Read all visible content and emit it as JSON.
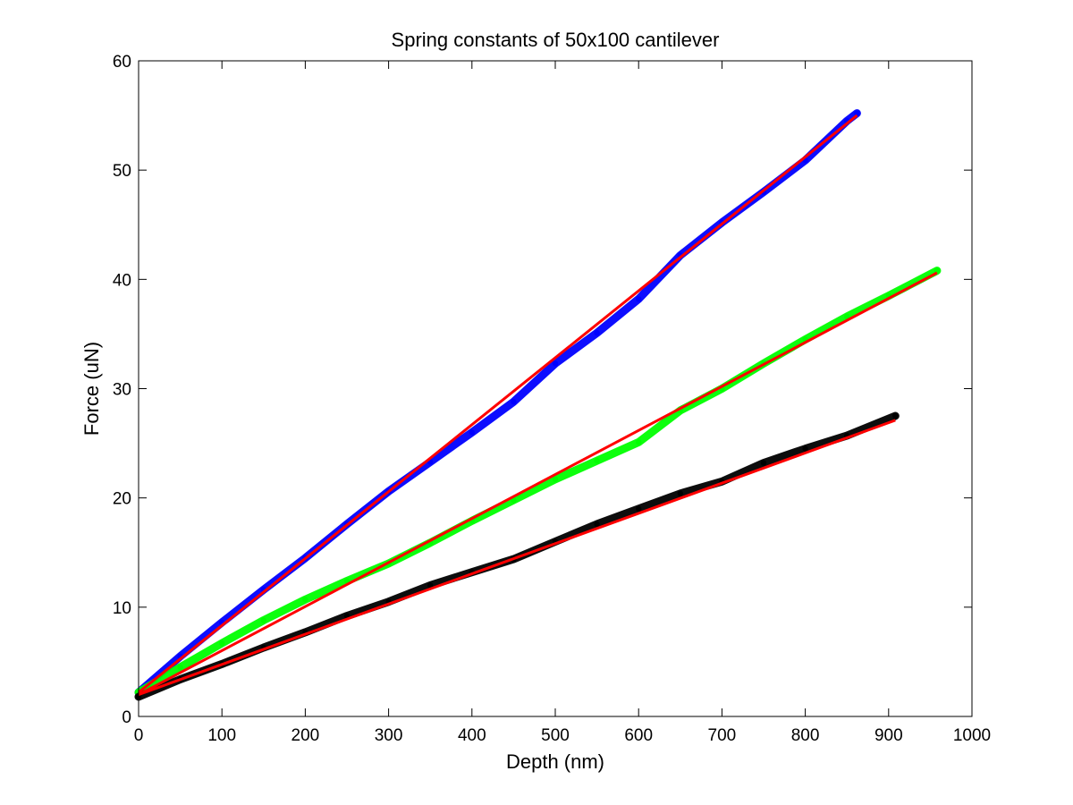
{
  "chart_data": {
    "type": "scatter",
    "title": "Spring constants of 50x100 cantilever",
    "xlabel": "Depth (nm)",
    "ylabel": "Force (uN)",
    "xlim": [
      0,
      1000
    ],
    "ylim": [
      0,
      60
    ],
    "xticks": [
      0,
      100,
      200,
      300,
      400,
      500,
      600,
      700,
      800,
      900,
      1000
    ],
    "yticks": [
      0,
      10,
      20,
      30,
      40,
      50,
      60
    ],
    "grid": false,
    "legend": "none",
    "series": [
      {
        "kind": "points",
        "color": "#0000ff",
        "x": [
          0,
          50,
          100,
          150,
          200,
          250,
          300,
          350,
          400,
          450,
          500,
          550,
          600,
          650,
          700,
          750,
          800,
          850,
          862
        ],
        "y": [
          2.2,
          5.5,
          8.6,
          11.6,
          14.5,
          17.6,
          20.6,
          23.3,
          26.0,
          28.8,
          32.3,
          35.1,
          38.2,
          42.2,
          45.2,
          48.0,
          50.9,
          54.5,
          55.2
        ]
      },
      {
        "kind": "fit",
        "color": "#ff0000",
        "x": [
          0,
          862
        ],
        "y": [
          2.2,
          55.0
        ]
      },
      {
        "kind": "points",
        "color": "#00ff00",
        "x": [
          0,
          50,
          100,
          150,
          200,
          250,
          300,
          350,
          400,
          450,
          500,
          550,
          600,
          650,
          700,
          750,
          800,
          850,
          900,
          958
        ],
        "y": [
          2.2,
          4.5,
          6.7,
          8.8,
          10.7,
          12.4,
          14.0,
          15.9,
          17.9,
          19.8,
          21.7,
          23.4,
          25.1,
          28.0,
          30.0,
          32.3,
          34.5,
          36.6,
          38.5,
          40.8
        ]
      },
      {
        "kind": "fit",
        "color": "#ff0000",
        "x": [
          0,
          958
        ],
        "y": [
          2.0,
          40.6
        ]
      },
      {
        "kind": "points",
        "color": "#000000",
        "x": [
          0,
          50,
          100,
          150,
          200,
          250,
          300,
          350,
          400,
          450,
          500,
          550,
          600,
          650,
          700,
          750,
          800,
          850,
          908
        ],
        "y": [
          1.8,
          3.4,
          4.8,
          6.3,
          7.7,
          9.2,
          10.5,
          12.0,
          13.2,
          14.4,
          16.0,
          17.6,
          19.0,
          20.4,
          21.5,
          23.2,
          24.5,
          25.7,
          27.5
        ]
      },
      {
        "kind": "fit",
        "color": "#ff0000",
        "x": [
          0,
          908
        ],
        "y": [
          2.0,
          27.1
        ]
      }
    ]
  }
}
